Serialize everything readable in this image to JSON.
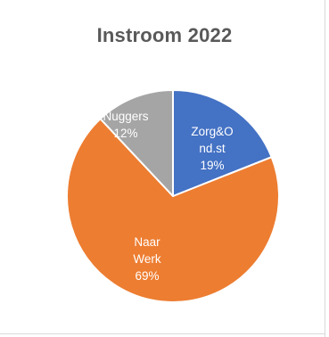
{
  "chart_data": {
    "type": "pie",
    "title": "Instroom 2022",
    "slices": [
      {
        "label_lines": [
          "Zorg&O",
          "nd.st"
        ],
        "percent_label": "19%",
        "value": 19,
        "color": "#4472c4"
      },
      {
        "label_lines": [
          "Naar",
          "Werk"
        ],
        "percent_label": "69%",
        "value": 69,
        "color": "#ed7d31"
      },
      {
        "label_lines": [
          "Nuggers"
        ],
        "percent_label": "12%",
        "value": 12,
        "color": "#a5a5a5"
      }
    ],
    "start_angle_deg": 0,
    "direction": "clockwise",
    "legend": "none"
  }
}
